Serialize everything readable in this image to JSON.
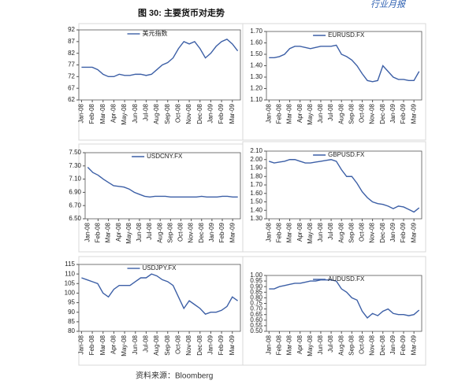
{
  "header": "行业月报",
  "figure_title": "图 30:  主要货币对走势",
  "source": "资料来源：Bloomberg",
  "chart_data": [
    {
      "type": "line",
      "categories": [
        "Jan-08",
        null,
        "Feb-08",
        null,
        "Mar-08",
        null,
        "Apr-08",
        null,
        "May-08",
        null,
        "Jun-08",
        null,
        "Jul-08",
        null,
        "Aug-08",
        null,
        "Sep-08",
        null,
        "Oct-08",
        null,
        "Nov-08",
        null,
        "Dec-08",
        null,
        "Jan-09",
        null,
        "Feb-09",
        null,
        "Mar-09",
        null
      ],
      "series": [
        {
          "name": "美元指数",
          "color": "#3c5fa6",
          "values": [
            76,
            76,
            76,
            75,
            73,
            72,
            72,
            73,
            72.5,
            72.5,
            73,
            73,
            72.5,
            73,
            75,
            77,
            78,
            80,
            84,
            87,
            86,
            87,
            84,
            80,
            82,
            85,
            87,
            88,
            86,
            83
          ]
        }
      ],
      "ylim": [
        62,
        92
      ],
      "yticks": [
        62,
        67,
        72,
        77,
        82,
        87,
        92
      ]
    },
    {
      "type": "line",
      "categories": [
        "Jan-08",
        null,
        "Feb-08",
        null,
        "Mar-08",
        null,
        "Apr-08",
        null,
        "May-08",
        null,
        "Jun-08",
        null,
        "Jul-08",
        null,
        "Aug-08",
        null,
        "Sep-08",
        null,
        "Oct-08",
        null,
        "Nov-08",
        null,
        "Dec-08",
        null,
        "Jan-09",
        null,
        "Feb-09",
        null,
        "Mar-09",
        null
      ],
      "series": [
        {
          "name": "EURUSD.FX",
          "color": "#3c5fa6",
          "values": [
            1.47,
            1.47,
            1.48,
            1.5,
            1.55,
            1.57,
            1.57,
            1.56,
            1.55,
            1.56,
            1.57,
            1.57,
            1.57,
            1.58,
            1.5,
            1.48,
            1.45,
            1.4,
            1.33,
            1.27,
            1.26,
            1.27,
            1.4,
            1.35,
            1.3,
            1.28,
            1.28,
            1.27,
            1.27,
            1.35
          ]
        }
      ],
      "ylim": [
        1.1,
        1.7
      ],
      "yticks": [
        {
          "value": 1.1,
          "label": "1.10"
        },
        {
          "value": 1.2,
          "label": "1.20"
        },
        {
          "value": 1.3,
          "label": "1.30"
        },
        {
          "value": 1.4,
          "label": "1.40"
        },
        {
          "value": 1.5,
          "label": "1.50"
        },
        {
          "value": 1.6,
          "label": "1.60"
        },
        {
          "value": 1.7,
          "label": "1.70"
        }
      ]
    },
    {
      "type": "line",
      "categories": [
        "Jan-08",
        null,
        "Feb-08",
        null,
        "Mar-08",
        null,
        "Apr-08",
        null,
        "May-08",
        null,
        "Jun-08",
        null,
        "Jul-08",
        null,
        "Aug-08",
        null,
        "Sep-08",
        null,
        "Oct-08",
        null,
        "Nov-08",
        null,
        "Dec-08",
        null,
        "Jan-09",
        null,
        "Feb-09",
        null,
        "Mar-09",
        null
      ],
      "series": [
        {
          "name": "USDCNY.FX",
          "color": "#3c5fa6",
          "values": [
            7.28,
            7.2,
            7.16,
            7.1,
            7.05,
            7.0,
            6.99,
            6.98,
            6.95,
            6.9,
            6.87,
            6.84,
            6.83,
            6.84,
            6.84,
            6.84,
            6.83,
            6.83,
            6.83,
            6.83,
            6.83,
            6.83,
            6.84,
            6.83,
            6.83,
            6.83,
            6.84,
            6.84,
            6.83,
            6.83
          ]
        }
      ],
      "ylim": [
        6.5,
        7.5
      ],
      "yticks": [
        {
          "value": 6.5,
          "label": "6.50"
        },
        {
          "value": 6.7,
          "label": "6.70"
        },
        {
          "value": 6.9,
          "label": "6.90"
        },
        {
          "value": 7.1,
          "label": "7.10"
        },
        {
          "value": 7.3,
          "label": "7.30"
        },
        {
          "value": 7.5,
          "label": "7.50"
        }
      ]
    },
    {
      "type": "line",
      "categories": [
        "Jan-08",
        null,
        "Feb-08",
        null,
        "Mar-08",
        null,
        "Apr-08",
        null,
        "May-08",
        null,
        "Jun-08",
        null,
        "Jul-08",
        null,
        "Aug-08",
        null,
        "Sep-08",
        null,
        "Oct-08",
        null,
        "Nov-08",
        null,
        "Dec-08",
        null,
        "Jan-09",
        null,
        "Feb-09",
        null,
        "Mar-09",
        null
      ],
      "series": [
        {
          "name": "GBPUSD.FX",
          "color": "#3c5fa6",
          "values": [
            1.98,
            1.96,
            1.97,
            1.98,
            2.0,
            2.0,
            1.98,
            1.96,
            1.96,
            1.97,
            1.98,
            1.99,
            2.0,
            1.98,
            1.88,
            1.8,
            1.8,
            1.72,
            1.62,
            1.55,
            1.5,
            1.48,
            1.47,
            1.45,
            1.42,
            1.45,
            1.44,
            1.41,
            1.38,
            1.43
          ]
        }
      ],
      "ylim": [
        1.3,
        2.1
      ],
      "yticks": [
        {
          "value": 1.3,
          "label": "1.30"
        },
        {
          "value": 1.4,
          "label": "1.40"
        },
        {
          "value": 1.5,
          "label": "1.50"
        },
        {
          "value": 1.6,
          "label": "1.60"
        },
        {
          "value": 1.7,
          "label": "1.70"
        },
        {
          "value": 1.8,
          "label": "1.80"
        },
        {
          "value": 1.9,
          "label": "1.90"
        },
        {
          "value": 2.0,
          "label": "2.00"
        },
        {
          "value": 2.1,
          "label": "2.10"
        }
      ]
    },
    {
      "type": "line",
      "categories": [
        "Jan-08",
        null,
        "Feb-08",
        null,
        "Mar-08",
        null,
        "Apr-08",
        null,
        "May-08",
        null,
        "Jun-08",
        null,
        "Jul-08",
        null,
        "Aug-08",
        null,
        "Sep-08",
        null,
        "Oct-08",
        null,
        "Nov-08",
        null,
        "Dec-08",
        null,
        "Jan-09",
        null,
        "Feb-09",
        null,
        "Mar-09",
        null
      ],
      "series": [
        {
          "name": "USDJPY.FX",
          "color": "#3c5fa6",
          "values": [
            108,
            107,
            106,
            105,
            100,
            98,
            102,
            104,
            104,
            104,
            106,
            108,
            108,
            110,
            109,
            107,
            106,
            104,
            98,
            92,
            96,
            94,
            92,
            89,
            90,
            90,
            91,
            93,
            98,
            96
          ]
        }
      ],
      "ylim": [
        80,
        115
      ],
      "yticks": [
        80,
        85,
        90,
        95,
        100,
        105,
        110,
        115
      ]
    },
    {
      "type": "line",
      "categories": [
        "Jan-08",
        null,
        "Feb-08",
        null,
        "Mar-08",
        null,
        "Apr-08",
        null,
        "May-08",
        null,
        "Jun-08",
        null,
        "Jul-08",
        null,
        "Aug-08",
        null,
        "Sep-08",
        null,
        "Oct-08",
        null,
        "Nov-08",
        null,
        "Dec-08",
        null,
        "Jan-09",
        null,
        "Feb-09",
        null,
        "Mar-09",
        null
      ],
      "series": [
        {
          "name": "AUDUSD.FX",
          "color": "#3c5fa6",
          "values": [
            0.88,
            0.88,
            0.9,
            0.91,
            0.92,
            0.93,
            0.93,
            0.94,
            0.95,
            0.95,
            0.96,
            0.96,
            0.96,
            0.95,
            0.88,
            0.85,
            0.8,
            0.78,
            0.68,
            0.62,
            0.66,
            0.64,
            0.68,
            0.7,
            0.66,
            0.65,
            0.65,
            0.64,
            0.65,
            0.69
          ]
        }
      ],
      "ylim": [
        0.5,
        1.0
      ],
      "yticks": [
        {
          "value": 0.5,
          "label": "0.50"
        },
        {
          "value": 0.55,
          "label": "0.55"
        },
        {
          "value": 0.6,
          "label": "0.60"
        },
        {
          "value": 0.65,
          "label": "0.65"
        },
        {
          "value": 0.7,
          "label": "0.70"
        },
        {
          "value": 0.75,
          "label": "0.75"
        },
        {
          "value": 0.8,
          "label": "0.80"
        },
        {
          "value": 0.85,
          "label": "0.85"
        },
        {
          "value": 0.9,
          "label": "0.90"
        },
        {
          "value": 0.95,
          "label": "0.95"
        },
        {
          "value": 1.0,
          "label": "1.00"
        }
      ]
    }
  ]
}
